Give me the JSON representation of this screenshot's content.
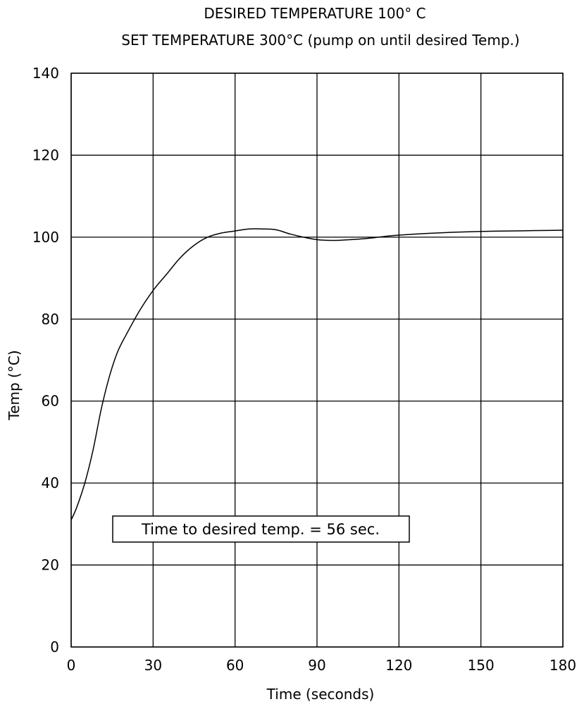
{
  "chart_data": {
    "type": "line",
    "title": "DESIRED TEMPERATURE 100° C",
    "subtitle": "SET TEMPERATURE 300°C (pump on until desired Temp.)",
    "xlabel": "Time (seconds)",
    "ylabel": "Temp (°C)",
    "xlim": [
      0,
      180
    ],
    "ylim": [
      0,
      140
    ],
    "xticks": [
      0,
      30,
      60,
      90,
      120,
      150,
      180
    ],
    "yticks": [
      0,
      20,
      40,
      60,
      80,
      100,
      120,
      140
    ],
    "grid": true,
    "annotation": "Time to desired temp. = 56 sec.",
    "series": [
      {
        "x": [
          0,
          2,
          5,
          8,
          11,
          14,
          17,
          20,
          25,
          30,
          35,
          40,
          45,
          50,
          55,
          60,
          65,
          70,
          75,
          80,
          85,
          90,
          95,
          100,
          105,
          110,
          115,
          120,
          130,
          140,
          150,
          160,
          170,
          180
        ],
        "y": [
          31,
          34,
          40,
          48,
          58,
          66,
          72,
          76,
          82,
          87,
          91,
          95,
          98,
          100,
          101,
          101.5,
          102,
          102,
          101.8,
          100.8,
          100,
          99.4,
          99.2,
          99.3,
          99.5,
          99.8,
          100.2,
          100.5,
          100.9,
          101.2,
          101.4,
          101.5,
          101.6,
          101.7
        ]
      }
    ]
  }
}
